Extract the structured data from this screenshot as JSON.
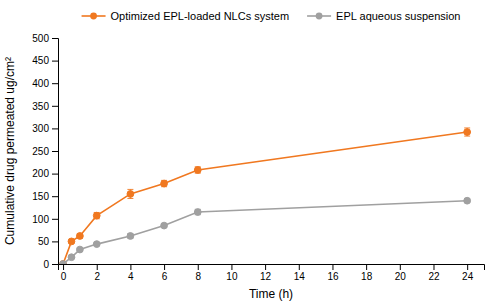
{
  "chart_data": {
    "type": "line",
    "xlabel": "Time (h)",
    "ylabel": "Cumulative drug permeated ug/cm²",
    "x": [
      0,
      0.5,
      1,
      2,
      4,
      6,
      8,
      24
    ],
    "series": [
      {
        "name": "Optimized EPL-loaded NLCs system",
        "color": "#F07820",
        "marker": "circle",
        "values": [
          0,
          50,
          62,
          107,
          155,
          178,
          208,
          292
        ],
        "errors": [
          0,
          3,
          5,
          7,
          10,
          7,
          7,
          9
        ]
      },
      {
        "name": "EPL aqueous suspension",
        "color": "#A0A0A0",
        "marker": "circle",
        "values": [
          0,
          15,
          32,
          44,
          62,
          85,
          115,
          140
        ],
        "errors": [
          0,
          2,
          3,
          3,
          5,
          4,
          6,
          4
        ]
      }
    ],
    "xlim": [
      -0.3,
      25
    ],
    "ylim": [
      0,
      500
    ],
    "xticks": [
      0,
      2,
      4,
      6,
      8,
      10,
      12,
      14,
      16,
      18,
      20,
      22,
      24
    ],
    "yticks": [
      0,
      50,
      100,
      150,
      200,
      250,
      300,
      350,
      400,
      450,
      500
    ],
    "grid": false,
    "legend": "top"
  }
}
